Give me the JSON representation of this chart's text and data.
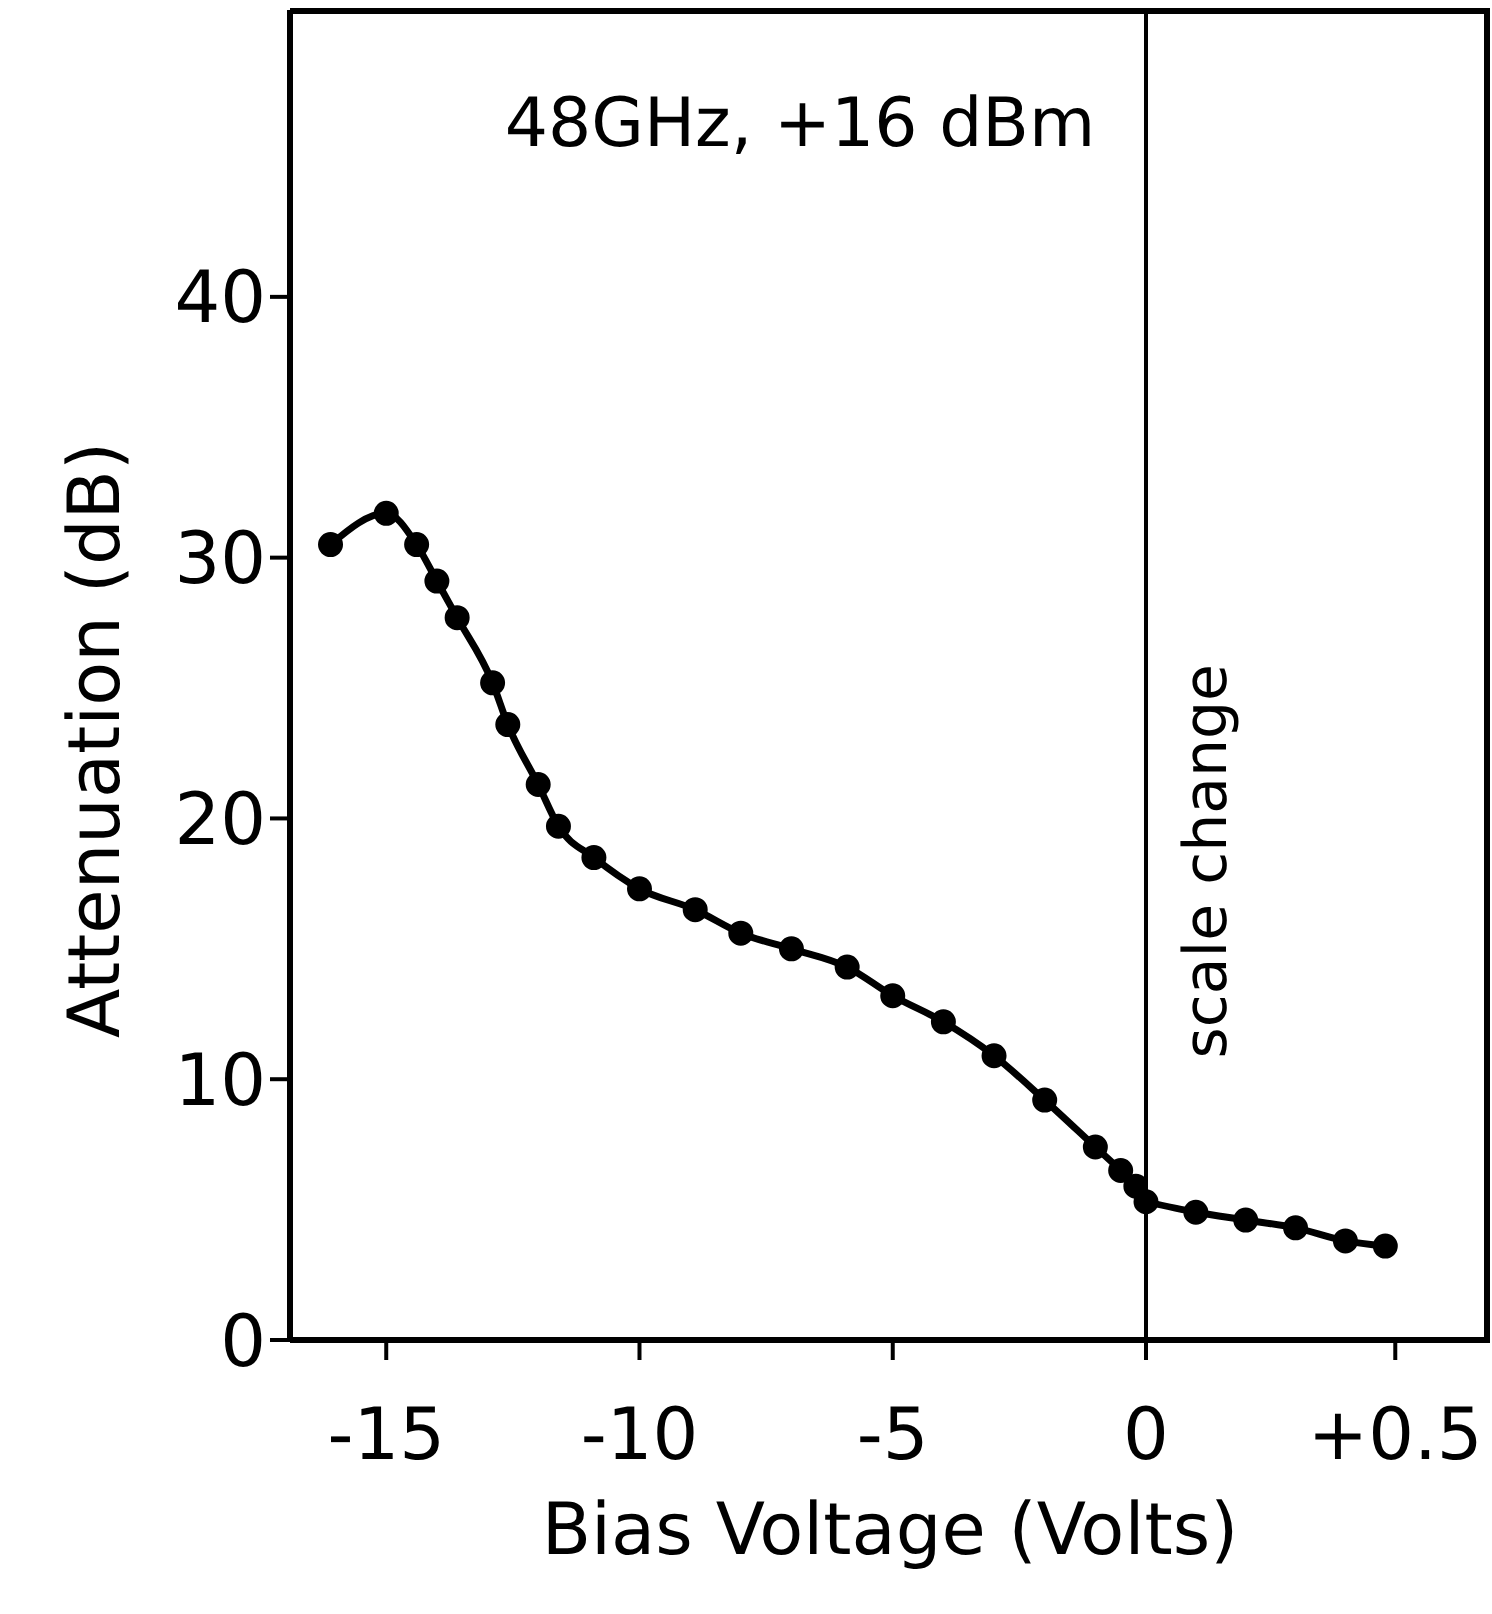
{
  "chart_data": [
    {
      "type": "line",
      "xlabel": "Bias Voltage (Volts)",
      "ylabel": "Attenuation (dB)",
      "annotations": [
        "48GHz, +16 dBm"
      ],
      "x": [
        -16.1,
        -15.0,
        -14.4,
        -14.0,
        -13.6,
        -12.9,
        -12.6,
        -12.0,
        -11.6,
        -10.9,
        -10.0,
        -8.9,
        -8.0,
        -7.0,
        -5.9,
        -5.0,
        -4.0,
        -3.0,
        -2.0,
        -1.0,
        -0.5,
        -0.2,
        0
      ],
      "series": [
        {
          "color": "#000000",
          "values": [
            30.5,
            31.7,
            30.5,
            29.1,
            27.7,
            25.2,
            23.6,
            21.3,
            19.7,
            18.5,
            17.3,
            16.5,
            15.6,
            15.0,
            14.3,
            13.2,
            12.2,
            10.9,
            9.2,
            7.4,
            6.5,
            5.9,
            5.3
          ]
        }
      ],
      "xlim": [
        -16.9,
        0
      ],
      "xticks": [
        -15,
        -10,
        -5
      ],
      "ylim": [
        0,
        51
      ],
      "yticks": [
        0,
        10,
        20,
        30,
        40
      ],
      "marker": "circle",
      "line_style": "solid",
      "ref_lines": [
        {
          "axis": "x",
          "value": 0,
          "label": "scale change"
        }
      ]
    },
    {
      "type": "line",
      "x": [
        0,
        0.1,
        0.2,
        0.3,
        0.4,
        0.48
      ],
      "series": [
        {
          "color": "#000000",
          "values": [
            5.3,
            4.9,
            4.6,
            4.3,
            3.8,
            3.6
          ]
        }
      ],
      "xlim": [
        0,
        0.69
      ],
      "xticks": [
        0,
        {
          "value": 0.5,
          "label": "+0.5"
        }
      ],
      "ylim": [
        0,
        51
      ],
      "tick_labels": "x",
      "marker": "circle",
      "line_style": "solid"
    }
  ]
}
